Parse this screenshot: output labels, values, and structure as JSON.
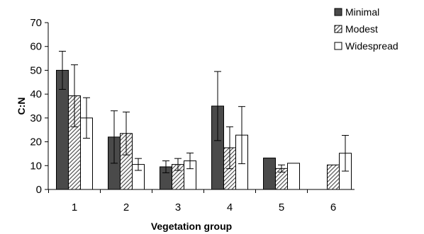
{
  "chart_data": {
    "type": "bar",
    "title": "",
    "xlabel": "Vegetation group",
    "ylabel": "C:N",
    "categories": [
      "1",
      "2",
      "3",
      "4",
      "5",
      "6"
    ],
    "ylim": [
      0,
      70
    ],
    "yticks": [
      0,
      10,
      20,
      30,
      40,
      50,
      60,
      70
    ],
    "grid": false,
    "legend": "top-right",
    "series": [
      {
        "name": "Minimal",
        "fill": "dark",
        "color": "#4a4a4a",
        "values": [
          50,
          22,
          9.5,
          35,
          13.2,
          null
        ],
        "errors": [
          8,
          11,
          2.5,
          14.5,
          null,
          null
        ]
      },
      {
        "name": "Modest",
        "fill": "hatched",
        "color": "#555555",
        "values": [
          39.3,
          23.5,
          10.5,
          17.5,
          8.8,
          10.3
        ],
        "errors": [
          13,
          9,
          2.5,
          8.8,
          1.5,
          null
        ]
      },
      {
        "name": "Widespread",
        "fill": "white",
        "color": "#ffffff",
        "values": [
          30,
          10.5,
          12,
          22.8,
          11,
          15.2
        ],
        "errors": [
          8.5,
          2.5,
          3.3,
          12,
          null,
          7.5
        ]
      }
    ]
  }
}
